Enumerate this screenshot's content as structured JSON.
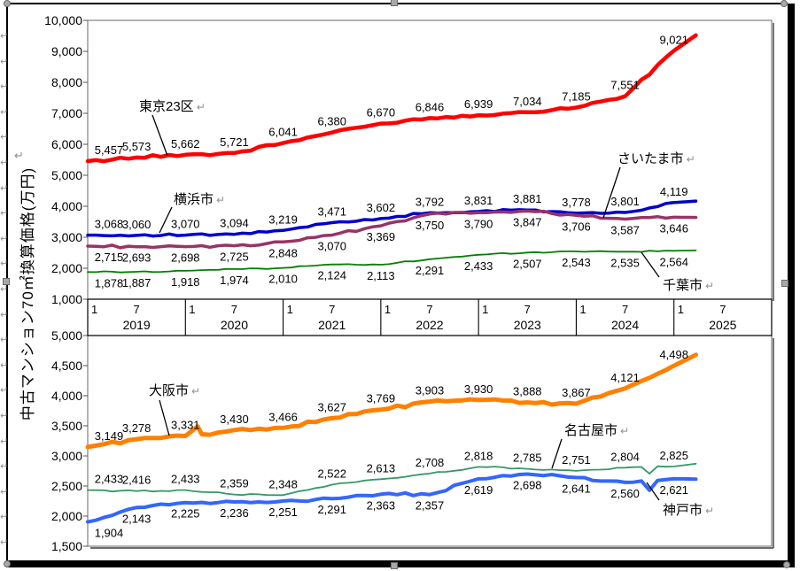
{
  "axis_title": {
    "text": "中古マンション70㎡換算価格(万円)",
    "mark": "↵"
  },
  "left_margin_mark": "↵",
  "x_axis": {
    "month_tick_first": "1",
    "month_tick_mid": "7",
    "years": [
      "2019",
      "2020",
      "2021",
      "2022",
      "2023",
      "2024",
      "2025"
    ]
  },
  "chart_data": [
    {
      "id": "top",
      "type": "line",
      "ylabel": "中古マンション70㎡換算価格(万円)",
      "ylim": [
        1000,
        10000
      ],
      "ytick_step": 1000,
      "legend_position": "callouts-on-plot",
      "grid": false,
      "x_categories": [
        "2019/1",
        "2019/7",
        "2020/1",
        "2020/7",
        "2021/1",
        "2021/7",
        "2022/1",
        "2022/7",
        "2023/1",
        "2023/7",
        "2024/1",
        "2024/7",
        "2025/1"
      ],
      "series": [
        {
          "key": "tokyo23",
          "name": "東京23区",
          "color": "#FF0000",
          "width": 4.5,
          "label_side": "above",
          "jitter": 55,
          "values": [
            5457,
            5573,
            5662,
            5721,
            6041,
            6380,
            6670,
            6846,
            6939,
            7034,
            7185,
            7551,
            9021
          ],
          "tail_value": 9520
        },
        {
          "key": "yokohama",
          "name": "横浜市",
          "color": "#0000CC",
          "width": 3.5,
          "label_side": "above",
          "jitter": 45,
          "values": [
            3068,
            3060,
            3070,
            3094,
            3219,
            3471,
            3602,
            3792,
            3831,
            3881,
            3778,
            3801,
            4119
          ],
          "tail_value": 4170
        },
        {
          "key": "saitama",
          "name": "さいたま市",
          "color": "#993366",
          "width": 3.5,
          "label_side": "below",
          "jitter": 50,
          "values": [
            2715,
            2693,
            2698,
            2725,
            2848,
            3070,
            3369,
            3750,
            3790,
            3847,
            3706,
            3587,
            3646
          ],
          "tail_value": 3640
        },
        {
          "key": "chiba",
          "name": "千葉市",
          "color": "#008000",
          "width": 1.8,
          "label_side": "below",
          "jitter": 25,
          "values": [
            1878,
            1887,
            1918,
            1974,
            2010,
            2124,
            2113,
            2291,
            2433,
            2507,
            2543,
            2535,
            2564
          ],
          "tail_value": 2575
        }
      ]
    },
    {
      "id": "bottom",
      "type": "line",
      "ylabel": "中古マンション70㎡換算価格(万円)",
      "ylim": [
        1500,
        5000
      ],
      "ytick_step": 500,
      "legend_position": "callouts-on-plot",
      "grid": false,
      "x_categories": [
        "2019/1",
        "2019/7",
        "2020/1",
        "2020/7",
        "2021/1",
        "2021/7",
        "2022/1",
        "2022/7",
        "2023/1",
        "2023/7",
        "2024/1",
        "2024/7",
        "2025/1"
      ],
      "series": [
        {
          "key": "osaka",
          "name": "大阪市",
          "color": "#FF8000",
          "width": 5,
          "label_side": "above",
          "jitter": 30,
          "values": [
            3149,
            3278,
            3331,
            3430,
            3466,
            3627,
            3769,
            3903,
            3930,
            3888,
            3867,
            4121,
            4498
          ],
          "tail_value": 4680,
          "extra_points": [
            {
              "t": 2.25,
              "v": 3490
            }
          ]
        },
        {
          "key": "nagoya",
          "name": "名古屋市",
          "color": "#339966",
          "width": 1.8,
          "label_side": "above",
          "jitter": 18,
          "values": [
            2433,
            2416,
            2433,
            2359,
            2348,
            2522,
            2613,
            2708,
            2818,
            2785,
            2751,
            2804,
            2825
          ],
          "tail_value": 2870,
          "extra_points": [
            {
              "t": 11.5,
              "v": 2705
            }
          ]
        },
        {
          "key": "kobe",
          "name": "神戸市",
          "color": "#3366FF",
          "width": 4,
          "label_side": "below",
          "jitter": 28,
          "values": [
            1904,
            2143,
            2225,
            2236,
            2251,
            2291,
            2363,
            2357,
            2619,
            2698,
            2641,
            2560,
            2621
          ],
          "tail_value": 2615,
          "extra_points": [
            {
              "t": 11.5,
              "v": 2430
            }
          ]
        }
      ]
    }
  ]
}
